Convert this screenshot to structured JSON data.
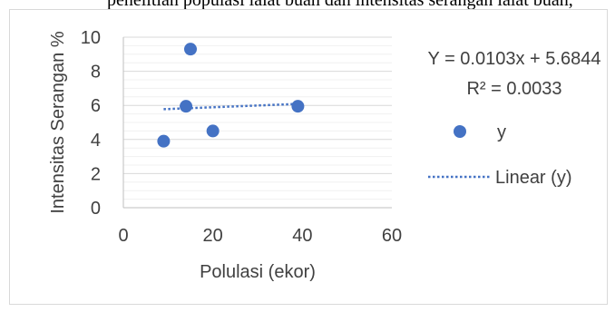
{
  "top_text": "penelitian populasi lalat buah dan intensitas serangan lalat buah,",
  "chart_data": {
    "type": "scatter",
    "title": "",
    "xlabel": "Polulasi (ekor)",
    "ylabel": "Intensitas Serangan %",
    "xlim": [
      0,
      60
    ],
    "ylim": [
      0,
      10
    ],
    "x_ticks": [
      0,
      20,
      40,
      60
    ],
    "y_ticks": [
      0,
      2,
      4,
      6,
      8,
      10
    ],
    "grid": "horizontal major and minor lines",
    "legend_position": "right",
    "series": [
      {
        "name": "y",
        "color": "#4472c4",
        "marker": "circle",
        "points": [
          {
            "x": 9,
            "y": 3.9
          },
          {
            "x": 14,
            "y": 5.95
          },
          {
            "x": 15,
            "y": 9.3
          },
          {
            "x": 20,
            "y": 4.5
          },
          {
            "x": 39,
            "y": 5.95
          }
        ]
      }
    ],
    "trendline": {
      "name": "Linear (y)",
      "type": "linear",
      "color": "#4472c4",
      "style": "dotted",
      "slope": 0.0103,
      "intercept": 5.6844,
      "x_range": [
        9,
        39
      ]
    },
    "annotations": {
      "equation": "Y = 0.0103x + 5.6844",
      "r_squared": "R² = 0.0033"
    }
  }
}
